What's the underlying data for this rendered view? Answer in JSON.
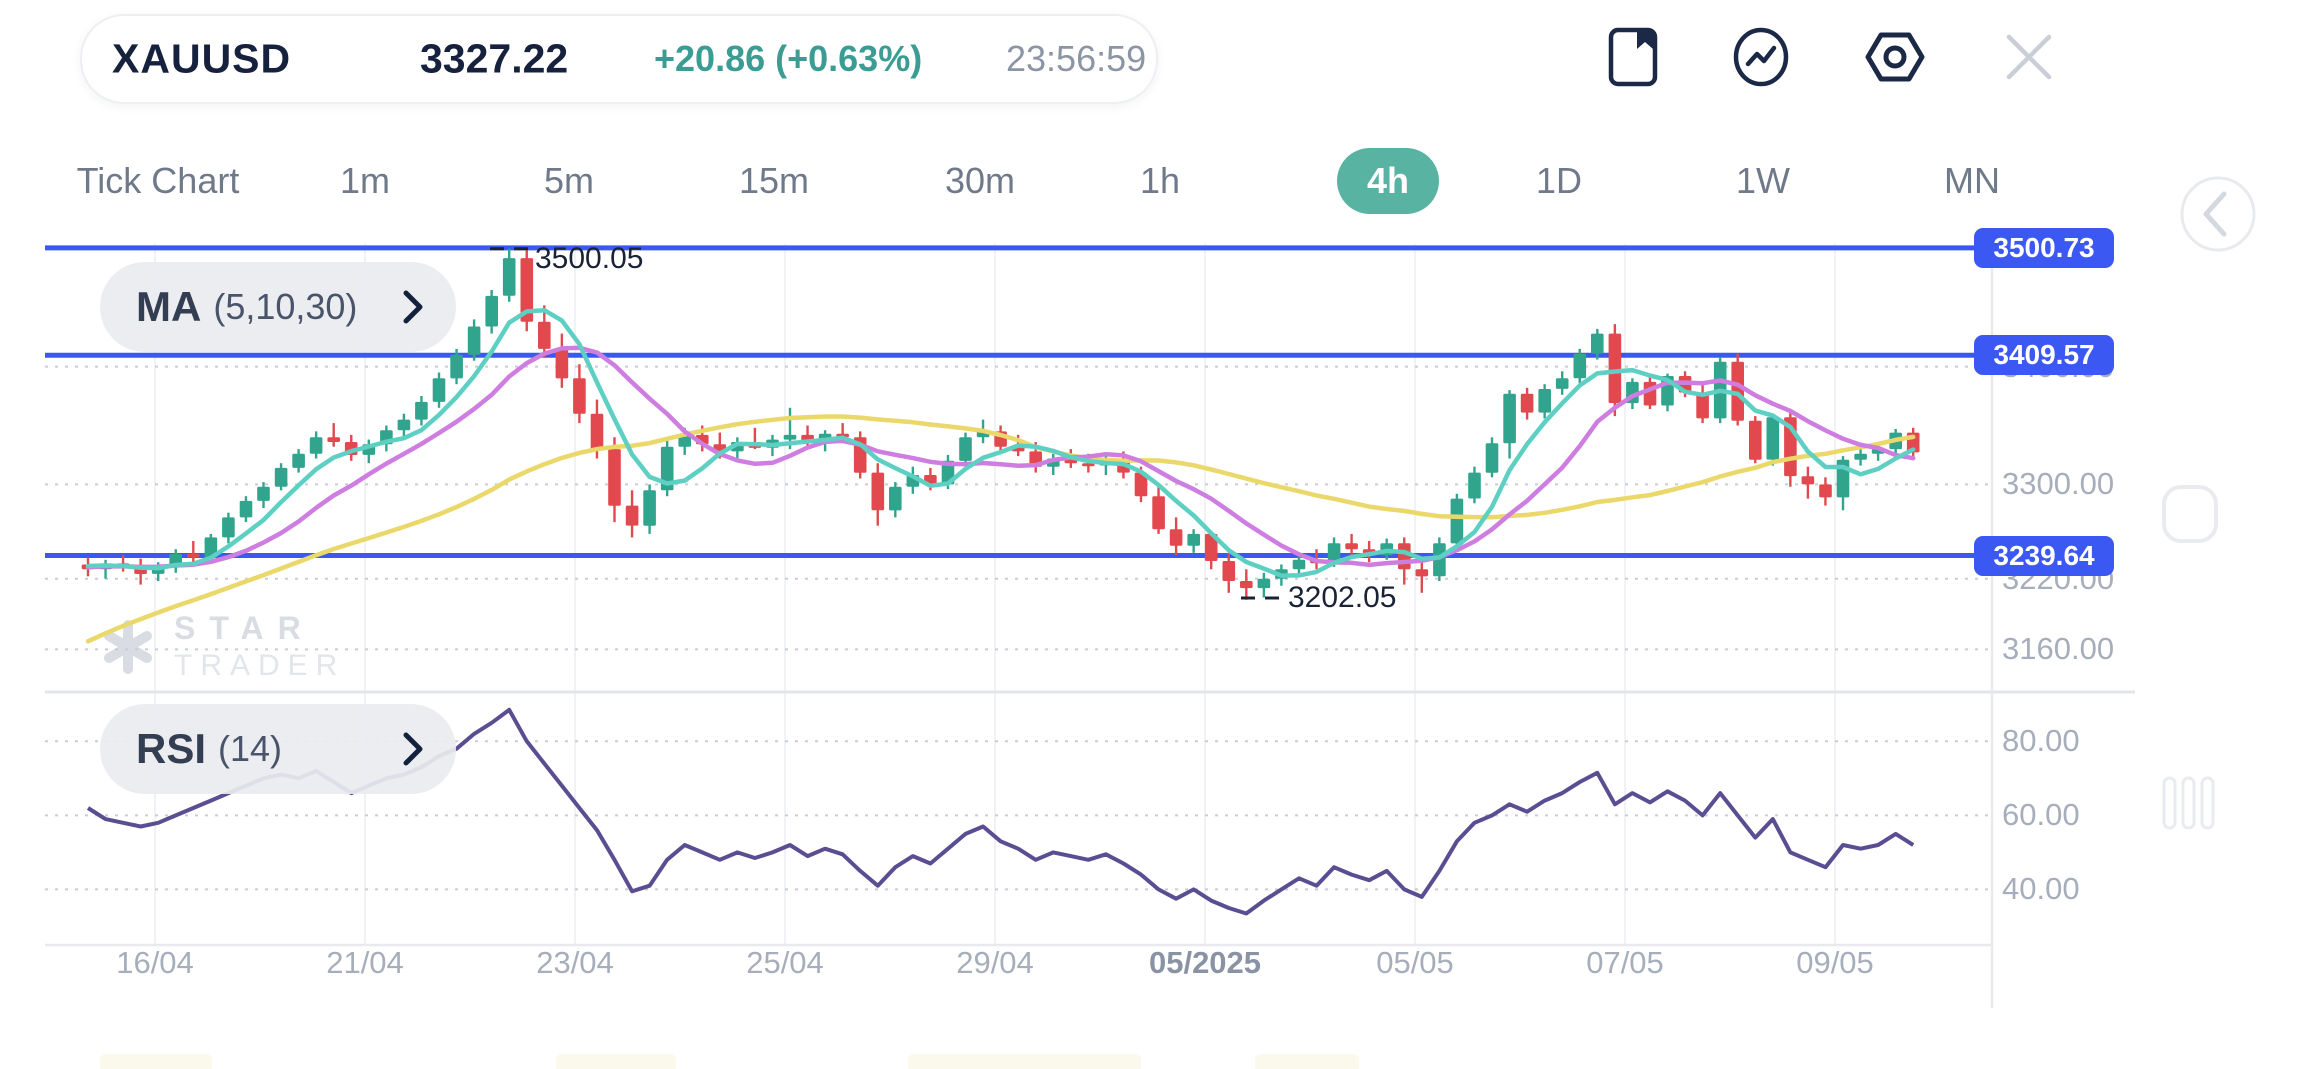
{
  "header": {
    "symbol": "XAUUSD",
    "price": "3327.22",
    "change": "+20.86 (+0.63%)",
    "time": "23:56:59"
  },
  "toolbar": {
    "icons": [
      "journal-bookmark",
      "pulse-chart",
      "settings-hexagon",
      "close"
    ]
  },
  "timeframes": {
    "items": [
      "Tick Chart",
      "1m",
      "5m",
      "15m",
      "30m",
      "1h",
      "4h",
      "1D",
      "1W",
      "MN"
    ],
    "selected": "4h"
  },
  "indicators": {
    "ma": {
      "name": "MA",
      "params": "(5,10,30)"
    },
    "rsi": {
      "name": "RSI",
      "params": "(14)"
    }
  },
  "watermark": {
    "line1": "STAR",
    "line2": "TRADER"
  },
  "chart_data": {
    "type": "candlestick",
    "symbol": "XAUUSD",
    "interval": "4h",
    "colors": {
      "up": "#31A48E",
      "down": "#E2494E",
      "ma5": "#5ECFC3",
      "ma10": "#CD7EE0",
      "ma30": "#EBD86A",
      "rsi": "#5B4D92",
      "level_line": "#3C58F3",
      "selected_tab": "#58B3A2",
      "accent_change": "#3A9C92"
    },
    "price_ylim": [
      3123,
      3504
    ],
    "price_lines": [
      {
        "text": "3500.73",
        "value": 3500.73
      },
      {
        "text": "3409.57",
        "value": 3409.57
      },
      {
        "text": "3239.64",
        "value": 3239.64
      }
    ],
    "price_axis": {
      "labels": [
        {
          "text": "3400.00",
          "value": 3400
        },
        {
          "text": "3300.00",
          "value": 3300
        },
        {
          "text": "3220.00",
          "value": 3220
        },
        {
          "text": "3160.00",
          "value": 3160
        }
      ]
    },
    "annotations": {
      "high": {
        "text": "3500.05",
        "value": 3500.05
      },
      "low": {
        "text": "3202.05",
        "value": 3202.05
      }
    },
    "x_axis": {
      "labels": [
        {
          "text": "16/04",
          "bold": false
        },
        {
          "text": "21/04",
          "bold": false
        },
        {
          "text": "23/04",
          "bold": false
        },
        {
          "text": "25/04",
          "bold": false
        },
        {
          "text": "29/04",
          "bold": false
        },
        {
          "text": "05/2025",
          "bold": true
        },
        {
          "text": "05/05",
          "bold": false
        },
        {
          "text": "07/05",
          "bold": false
        },
        {
          "text": "09/05",
          "bold": false
        }
      ]
    },
    "ma": {
      "periods": [
        5,
        10,
        30
      ],
      "lead_in_closes": [
        3020,
        3030,
        3040,
        3052,
        3064,
        3076,
        3088,
        3100,
        3112,
        3124,
        3136,
        3147,
        3158,
        3168,
        3178,
        3187,
        3196,
        3204,
        3211,
        3217,
        3222,
        3226,
        3228,
        3229,
        3230,
        3230,
        3231,
        3231,
        3232,
        3232
      ]
    },
    "candles": [
      [
        3232,
        3238,
        3222,
        3228
      ],
      [
        3228,
        3236,
        3220,
        3233
      ],
      [
        3233,
        3240,
        3226,
        3229
      ],
      [
        3229,
        3237,
        3215,
        3224
      ],
      [
        3224,
        3234,
        3218,
        3231
      ],
      [
        3231,
        3245,
        3225,
        3241
      ],
      [
        3241,
        3252,
        3234,
        3238
      ],
      [
        3238,
        3258,
        3233,
        3255
      ],
      [
        3255,
        3276,
        3250,
        3272
      ],
      [
        3272,
        3290,
        3268,
        3286
      ],
      [
        3286,
        3302,
        3280,
        3298
      ],
      [
        3298,
        3318,
        3295,
        3314
      ],
      [
        3314,
        3330,
        3310,
        3326
      ],
      [
        3326,
        3345,
        3322,
        3340
      ],
      [
        3340,
        3352,
        3332,
        3336
      ],
      [
        3336,
        3342,
        3320,
        3325
      ],
      [
        3325,
        3338,
        3318,
        3334
      ],
      [
        3334,
        3350,
        3328,
        3346
      ],
      [
        3346,
        3360,
        3340,
        3355
      ],
      [
        3355,
        3375,
        3350,
        3370
      ],
      [
        3370,
        3395,
        3365,
        3390
      ],
      [
        3390,
        3415,
        3385,
        3410
      ],
      [
        3410,
        3440,
        3405,
        3434
      ],
      [
        3434,
        3465,
        3428,
        3460
      ],
      [
        3460,
        3500.05,
        3455,
        3492
      ],
      [
        3492,
        3500,
        3430,
        3438
      ],
      [
        3438,
        3452,
        3408,
        3415
      ],
      [
        3415,
        3428,
        3382,
        3390
      ],
      [
        3390,
        3402,
        3352,
        3360
      ],
      [
        3360,
        3372,
        3322,
        3330
      ],
      [
        3330,
        3340,
        3268,
        3282
      ],
      [
        3282,
        3295,
        3255,
        3265
      ],
      [
        3265,
        3300,
        3258,
        3295
      ],
      [
        3295,
        3338,
        3290,
        3332
      ],
      [
        3332,
        3348,
        3325,
        3342
      ],
      [
        3342,
        3350,
        3328,
        3334
      ],
      [
        3334,
        3344,
        3322,
        3328
      ],
      [
        3328,
        3340,
        3320,
        3336
      ],
      [
        3336,
        3348,
        3330,
        3331
      ],
      [
        3331,
        3342,
        3324,
        3338
      ],
      [
        3338,
        3365,
        3330,
        3342
      ],
      [
        3342,
        3350,
        3330,
        3335
      ],
      [
        3335,
        3346,
        3328,
        3343
      ],
      [
        3343,
        3352,
        3335,
        3340
      ],
      [
        3340,
        3345,
        3305,
        3310
      ],
      [
        3310,
        3318,
        3265,
        3278
      ],
      [
        3278,
        3302,
        3272,
        3298
      ],
      [
        3298,
        3315,
        3292,
        3308
      ],
      [
        3308,
        3314,
        3295,
        3300
      ],
      [
        3300,
        3325,
        3296,
        3320
      ],
      [
        3320,
        3344,
        3315,
        3340
      ],
      [
        3340,
        3355,
        3335,
        3345
      ],
      [
        3345,
        3350,
        3328,
        3332
      ],
      [
        3332,
        3342,
        3324,
        3328
      ],
      [
        3328,
        3336,
        3310,
        3315
      ],
      [
        3315,
        3326,
        3308,
        3322
      ],
      [
        3322,
        3330,
        3314,
        3318
      ],
      [
        3318,
        3326,
        3310,
        3316
      ],
      [
        3316,
        3324,
        3308,
        3320
      ],
      [
        3320,
        3328,
        3305,
        3310
      ],
      [
        3310,
        3315,
        3285,
        3290
      ],
      [
        3290,
        3298,
        3258,
        3262
      ],
      [
        3262,
        3272,
        3240,
        3248
      ],
      [
        3248,
        3262,
        3242,
        3258
      ],
      [
        3258,
        3260,
        3228,
        3235
      ],
      [
        3235,
        3242,
        3208,
        3218
      ],
      [
        3218,
        3228,
        3202.05,
        3212
      ],
      [
        3212,
        3225,
        3204,
        3220
      ],
      [
        3220,
        3232,
        3214,
        3228
      ],
      [
        3228,
        3240,
        3222,
        3236
      ],
      [
        3236,
        3245,
        3228,
        3233
      ],
      [
        3233,
        3255,
        3230,
        3250
      ],
      [
        3250,
        3258,
        3240,
        3245
      ],
      [
        3245,
        3252,
        3234,
        3240
      ],
      [
        3240,
        3254,
        3236,
        3250
      ],
      [
        3250,
        3255,
        3215,
        3228
      ],
      [
        3228,
        3235,
        3208,
        3222
      ],
      [
        3222,
        3255,
        3218,
        3250
      ],
      [
        3250,
        3292,
        3246,
        3288
      ],
      [
        3288,
        3315,
        3284,
        3310
      ],
      [
        3310,
        3340,
        3306,
        3335
      ],
      [
        3335,
        3380,
        3322,
        3377
      ],
      [
        3377,
        3382,
        3355,
        3361
      ],
      [
        3361,
        3385,
        3356,
        3381
      ],
      [
        3381,
        3396,
        3376,
        3390
      ],
      [
        3390,
        3415,
        3386,
        3411
      ],
      [
        3411,
        3432,
        3406,
        3428
      ],
      [
        3428,
        3436,
        3358,
        3369
      ],
      [
        3369,
        3390,
        3364,
        3387
      ],
      [
        3387,
        3392,
        3364,
        3367
      ],
      [
        3367,
        3394,
        3362,
        3392
      ],
      [
        3392,
        3396,
        3374,
        3378
      ],
      [
        3378,
        3386,
        3352,
        3356
      ],
      [
        3356,
        3408,
        3352,
        3404
      ],
      [
        3404,
        3411,
        3350,
        3354
      ],
      [
        3354,
        3358,
        3318,
        3321
      ],
      [
        3321,
        3360,
        3316,
        3357
      ],
      [
        3357,
        3362,
        3298,
        3307
      ],
      [
        3307,
        3315,
        3288,
        3300
      ],
      [
        3300,
        3306,
        3282,
        3289
      ],
      [
        3289,
        3324,
        3278,
        3321
      ],
      [
        3321,
        3330,
        3316,
        3326
      ],
      [
        3326,
        3333,
        3320,
        3330
      ],
      [
        3330,
        3347,
        3326,
        3344
      ],
      [
        3344,
        3348,
        3322,
        3327.22
      ]
    ],
    "rsi": {
      "period": 14,
      "ylim": [
        25,
        92.5
      ],
      "axis_labels": [
        {
          "text": "80.00",
          "value": 80
        },
        {
          "text": "60.00",
          "value": 60
        },
        {
          "text": "40.00",
          "value": 40
        }
      ],
      "values": [
        62,
        59,
        58,
        57,
        58,
        60,
        62,
        64,
        66,
        68,
        70,
        71,
        70,
        72,
        69,
        66,
        68,
        70,
        71,
        73,
        76,
        78,
        82,
        85,
        88.5,
        80,
        74,
        68,
        62,
        56,
        48,
        39.5,
        41,
        48,
        52,
        50,
        48,
        50,
        48.5,
        50,
        52,
        49,
        51,
        49.5,
        45,
        41,
        46,
        49,
        47,
        51,
        55,
        57,
        53,
        51,
        48,
        50,
        49,
        48,
        49.5,
        47,
        44,
        40,
        37.5,
        40,
        37,
        35,
        33.5,
        37,
        40,
        43,
        41,
        46,
        44,
        42.5,
        45,
        40,
        38,
        45,
        53,
        58,
        60,
        63,
        61,
        64,
        66,
        69,
        71.5,
        63,
        66,
        63.5,
        66.5,
        64,
        60,
        66,
        60,
        54,
        59,
        50,
        48,
        46,
        52,
        51,
        52,
        55,
        52
      ]
    }
  }
}
